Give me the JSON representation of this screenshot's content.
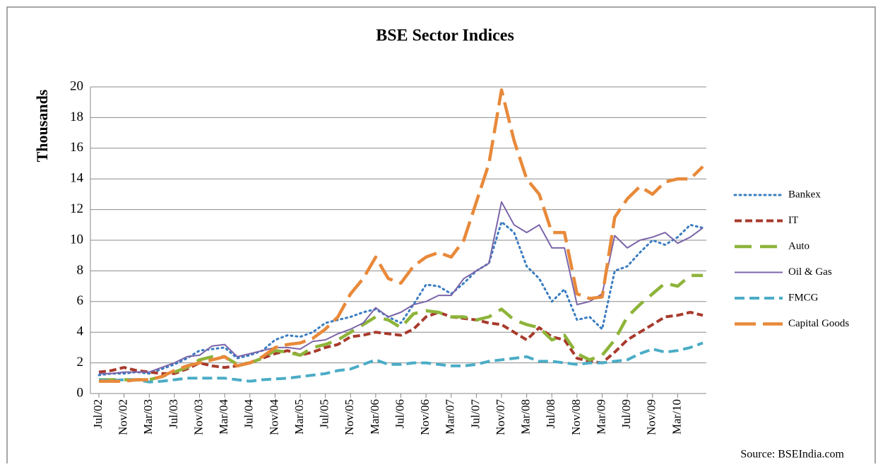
{
  "chart_data": {
    "type": "line",
    "title": "BSE Sector Indices",
    "y_label": "Thousands",
    "source": "Source: BSEIndia.com",
    "categories": [
      "Jul/02",
      null,
      "Nov/02",
      null,
      "Mar/03",
      null,
      "Jul/03",
      null,
      "Nov/03",
      null,
      "Mar/04",
      null,
      "Jul/04",
      null,
      "Nov/04",
      null,
      "Mar/05",
      null,
      "Jul/05",
      null,
      "Nov/05",
      null,
      "Mar/06",
      null,
      "Jul/06",
      null,
      "Nov/06",
      null,
      "Mar/07",
      null,
      "Jul/07",
      null,
      "Nov/07",
      null,
      "Mar/08",
      null,
      "Jul/08",
      null,
      "Nov/08",
      null,
      "Mar/09",
      null,
      "Jul/09",
      null,
      "Nov/09",
      null,
      "Mar/10",
      null,
      null
    ],
    "series": [
      {
        "name": "Bankex",
        "color": "#3a7cc0",
        "values": [
          1.2,
          1.3,
          1.3,
          1.4,
          1.3,
          1.6,
          1.9,
          2.3,
          2.8,
          2.9,
          3.0,
          2.3,
          2.5,
          2.8,
          3.5,
          3.8,
          3.7,
          4.0,
          4.6,
          4.8,
          5.0,
          5.3,
          5.5,
          5.0,
          4.6,
          5.8,
          7.1,
          7.0,
          6.5,
          7.2,
          8.0,
          8.5,
          11.2,
          10.5,
          8.3,
          7.5,
          6.0,
          6.8,
          4.8,
          5.0,
          4.2,
          8.0,
          8.3,
          9.2,
          10.0,
          9.7,
          10.2,
          11.0,
          10.8
        ]
      },
      {
        "name": "IT",
        "color": "#a83a2c",
        "values": [
          1.4,
          1.5,
          1.7,
          1.5,
          1.4,
          1.3,
          1.3,
          1.6,
          2.0,
          1.8,
          1.7,
          1.8,
          2.0,
          2.3,
          2.6,
          2.8,
          2.5,
          2.7,
          3.0,
          3.2,
          3.7,
          3.8,
          4.0,
          3.9,
          3.8,
          4.2,
          5.0,
          5.3,
          5.0,
          4.9,
          4.8,
          4.6,
          4.5,
          4.0,
          3.5,
          4.3,
          3.7,
          3.5,
          2.3,
          2.1,
          2.0,
          2.7,
          3.5,
          4.0,
          4.5,
          5.0,
          5.1,
          5.3,
          5.1
        ]
      },
      {
        "name": "Auto",
        "color": "#8db43a",
        "values": [
          0.9,
          0.9,
          0.9,
          0.9,
          0.9,
          1.1,
          1.4,
          1.7,
          2.2,
          2.4,
          2.4,
          1.9,
          2.0,
          2.3,
          2.8,
          2.7,
          2.5,
          3.0,
          3.2,
          3.5,
          4.0,
          4.5,
          5.0,
          4.8,
          4.3,
          5.2,
          5.4,
          5.3,
          5.0,
          5.0,
          4.8,
          5.0,
          5.5,
          4.8,
          4.5,
          4.3,
          3.5,
          3.8,
          2.6,
          2.2,
          2.5,
          3.5,
          5.0,
          5.8,
          6.5,
          7.2,
          7.0,
          7.7,
          7.7
        ]
      },
      {
        "name": "Oil & Gas",
        "color": "#7b65aa",
        "values": [
          1.3,
          1.3,
          1.4,
          1.4,
          1.4,
          1.7,
          2.0,
          2.4,
          2.5,
          3.1,
          3.2,
          2.4,
          2.6,
          2.8,
          3.0,
          3.0,
          2.9,
          3.4,
          3.5,
          3.9,
          4.2,
          4.6,
          5.6,
          5.0,
          5.3,
          5.8,
          6.0,
          6.4,
          6.4,
          7.5,
          8.0,
          8.5,
          12.5,
          11.0,
          10.5,
          11.0,
          9.5,
          9.5,
          5.8,
          6.0,
          6.5,
          10.3,
          9.5,
          10.0,
          10.2,
          10.5,
          9.8,
          10.2,
          10.8
        ]
      },
      {
        "name": "FMCG",
        "color": "#4bacc6",
        "values": [
          0.9,
          0.85,
          0.9,
          0.9,
          0.75,
          0.8,
          0.9,
          1.0,
          1.0,
          1.0,
          1.0,
          0.9,
          0.8,
          0.9,
          0.95,
          1.0,
          1.1,
          1.2,
          1.3,
          1.5,
          1.6,
          1.9,
          2.2,
          1.9,
          1.9,
          2.0,
          2.0,
          1.9,
          1.8,
          1.8,
          1.9,
          2.1,
          2.2,
          2.3,
          2.4,
          2.1,
          2.1,
          2.0,
          1.9,
          2.0,
          2.0,
          2.1,
          2.2,
          2.6,
          2.9,
          2.7,
          2.8,
          3.0,
          3.3
        ]
      },
      {
        "name": "Capital Goods",
        "color": "#e8893a",
        "values": [
          0.8,
          0.8,
          0.8,
          0.9,
          0.9,
          1.1,
          1.5,
          1.8,
          2.0,
          2.2,
          2.4,
          1.8,
          2.0,
          2.4,
          3.0,
          3.2,
          3.3,
          3.6,
          4.2,
          5.0,
          6.5,
          7.5,
          8.9,
          7.5,
          7.2,
          8.3,
          8.9,
          9.2,
          8.9,
          10.0,
          12.5,
          15.0,
          19.8,
          16.5,
          14.0,
          13.0,
          10.5,
          10.5,
          6.5,
          6.2,
          6.3,
          11.5,
          12.7,
          13.5,
          13.0,
          13.8,
          14.0,
          14.0,
          14.8
        ]
      }
    ],
    "ylim": [
      0,
      20
    ],
    "yticks": [
      0,
      2,
      4,
      6,
      8,
      10,
      12,
      14,
      16,
      18,
      20
    ],
    "grid": true,
    "legend": "right"
  }
}
